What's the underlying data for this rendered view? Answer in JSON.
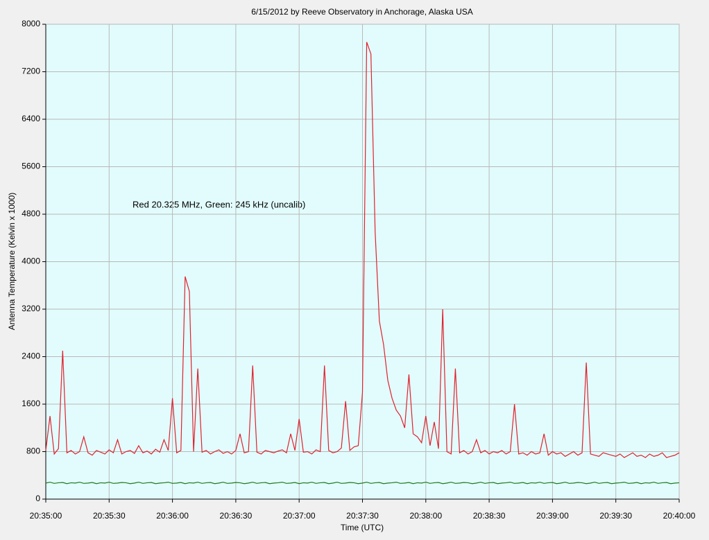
{
  "chart_data": {
    "type": "line",
    "title": "6/15/2012  by  Reeve Observatory  in  Anchorage, Alaska  USA",
    "annotation": "Red 20.325 MHz, Green: 245 kHz (uncalib)",
    "xlabel": "Time (UTC)",
    "ylabel": "Antenna Temperature (Kelvin x 1000)",
    "x": [
      "20:35:00",
      "20:35:02",
      "20:35:04",
      "20:35:06",
      "20:35:08",
      "20:35:10",
      "20:35:12",
      "20:35:14",
      "20:35:16",
      "20:35:18",
      "20:35:20",
      "20:35:22",
      "20:35:24",
      "20:35:26",
      "20:35:28",
      "20:35:30",
      "20:35:32",
      "20:35:34",
      "20:35:36",
      "20:35:38",
      "20:35:40",
      "20:35:42",
      "20:35:44",
      "20:35:46",
      "20:35:48",
      "20:35:50",
      "20:35:52",
      "20:35:54",
      "20:35:56",
      "20:35:58",
      "20:36:00",
      "20:36:02",
      "20:36:04",
      "20:36:06",
      "20:36:08",
      "20:36:10",
      "20:36:12",
      "20:36:14",
      "20:36:16",
      "20:36:18",
      "20:36:20",
      "20:36:22",
      "20:36:24",
      "20:36:26",
      "20:36:28",
      "20:36:30",
      "20:36:32",
      "20:36:34",
      "20:36:36",
      "20:36:38",
      "20:36:40",
      "20:36:42",
      "20:36:44",
      "20:36:46",
      "20:36:48",
      "20:36:50",
      "20:36:52",
      "20:36:54",
      "20:36:56",
      "20:36:58",
      "20:37:00",
      "20:37:02",
      "20:37:04",
      "20:37:06",
      "20:37:08",
      "20:37:10",
      "20:37:12",
      "20:37:14",
      "20:37:16",
      "20:37:18",
      "20:37:20",
      "20:37:22",
      "20:37:24",
      "20:37:26",
      "20:37:28",
      "20:37:30",
      "20:37:32",
      "20:37:34",
      "20:37:36",
      "20:37:38",
      "20:37:40",
      "20:37:42",
      "20:37:44",
      "20:37:46",
      "20:37:48",
      "20:37:50",
      "20:37:52",
      "20:37:54",
      "20:37:56",
      "20:37:58",
      "20:38:00",
      "20:38:02",
      "20:38:04",
      "20:38:06",
      "20:38:08",
      "20:38:10",
      "20:38:12",
      "20:38:14",
      "20:38:16",
      "20:38:18",
      "20:38:20",
      "20:38:22",
      "20:38:24",
      "20:38:26",
      "20:38:28",
      "20:38:30",
      "20:38:32",
      "20:38:34",
      "20:38:36",
      "20:38:38",
      "20:38:40",
      "20:38:42",
      "20:38:44",
      "20:38:46",
      "20:38:48",
      "20:38:50",
      "20:38:52",
      "20:38:54",
      "20:38:56",
      "20:38:58",
      "20:39:00",
      "20:39:02",
      "20:39:04",
      "20:39:06",
      "20:39:08",
      "20:39:10",
      "20:39:12",
      "20:39:14",
      "20:39:16",
      "20:39:18",
      "20:39:20",
      "20:39:22",
      "20:39:24",
      "20:39:26",
      "20:39:28",
      "20:39:30",
      "20:39:32",
      "20:39:34",
      "20:39:36",
      "20:39:38",
      "20:39:40",
      "20:39:42",
      "20:39:44",
      "20:39:46",
      "20:39:48",
      "20:39:50",
      "20:39:52",
      "20:39:54",
      "20:39:56",
      "20:39:58",
      "20:40:00"
    ],
    "series": [
      {
        "color": "#e0202c",
        "values": [
          820,
          1400,
          760,
          850,
          2500,
          780,
          820,
          760,
          800,
          1050,
          780,
          740,
          820,
          790,
          760,
          830,
          780,
          1000,
          760,
          800,
          820,
          770,
          900,
          780,
          810,
          760,
          840,
          790,
          1000,
          820,
          1700,
          780,
          820,
          3750,
          3500,
          800,
          2200,
          790,
          820,
          760,
          800,
          830,
          770,
          800,
          760,
          820,
          1100,
          780,
          800,
          2250,
          790,
          760,
          820,
          800,
          780,
          810,
          830,
          780,
          1100,
          820,
          1350,
          790,
          800,
          760,
          830,
          800,
          2250,
          820,
          780,
          800,
          860,
          1650,
          820,
          880,
          900,
          1800,
          7700,
          7500,
          4500,
          3000,
          2600,
          2000,
          1700,
          1500,
          1400,
          1200,
          2100,
          1100,
          1050,
          950,
          1400,
          900,
          1300,
          850,
          3200,
          800,
          760,
          2200,
          780,
          820,
          760,
          800,
          1000,
          780,
          820,
          760,
          800,
          780,
          820,
          760,
          800,
          1600,
          760,
          780,
          740,
          800,
          760,
          780,
          1100,
          740,
          800,
          760,
          780,
          720,
          760,
          800,
          740,
          780,
          2300,
          760,
          740,
          720,
          780,
          760,
          740,
          720,
          760,
          700,
          740,
          780,
          720,
          740,
          700,
          760,
          720,
          740,
          780,
          700,
          720,
          740,
          780
        ]
      },
      {
        "color": "#1a7a1a",
        "values": [
          270,
          285,
          265,
          275,
          280,
          260,
          275,
          270,
          285,
          265,
          270,
          280,
          260,
          275,
          270,
          285,
          265,
          270,
          280,
          275,
          260,
          270,
          285,
          265,
          275,
          280,
          260,
          270,
          275,
          285,
          265,
          270,
          280,
          260,
          275,
          270,
          285,
          265,
          275,
          280,
          260,
          270,
          285,
          265,
          270,
          280,
          275,
          260,
          270,
          285,
          265,
          275,
          280,
          260,
          270,
          275,
          285,
          265,
          270,
          280,
          260,
          275,
          270,
          285,
          265,
          275,
          280,
          260,
          270,
          285,
          265,
          270,
          280,
          275,
          260,
          270,
          285,
          265,
          275,
          280,
          260,
          270,
          275,
          285,
          265,
          270,
          280,
          260,
          275,
          270,
          285,
          265,
          275,
          280,
          260,
          270,
          285,
          265,
          270,
          280,
          275,
          260,
          270,
          285,
          265,
          275,
          280,
          260,
          270,
          275,
          285,
          265,
          270,
          280,
          260,
          275,
          270,
          285,
          265,
          275,
          280,
          260,
          270,
          285,
          265,
          270,
          280,
          275,
          260,
          270,
          285,
          265,
          275,
          280,
          260,
          270,
          275,
          285,
          265,
          270,
          280,
          260,
          275,
          270,
          285,
          265,
          275,
          280,
          260,
          270,
          275
        ]
      }
    ],
    "xlim": [
      "20:35:00",
      "20:40:00"
    ],
    "xticks": [
      "20:35:00",
      "20:35:30",
      "20:36:00",
      "20:36:30",
      "20:37:00",
      "20:37:30",
      "20:38:00",
      "20:38:30",
      "20:39:00",
      "20:39:30",
      "20:40:00"
    ],
    "ylim": [
      0,
      8000
    ],
    "yticks": [
      0,
      800,
      1600,
      2400,
      3200,
      4000,
      4800,
      5600,
      6400,
      7200,
      8000
    ],
    "grid": true
  }
}
